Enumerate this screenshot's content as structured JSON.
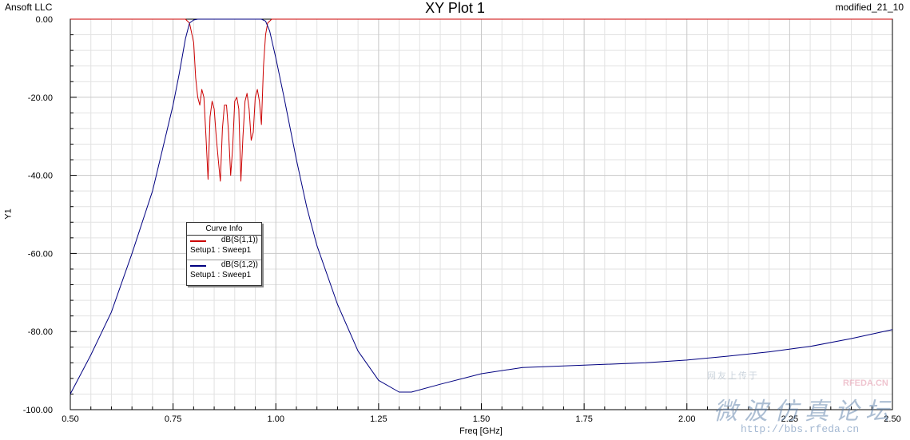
{
  "header": {
    "vendor": "Ansoft LLC",
    "title": "XY Plot 1",
    "design_name": "modified_21_10"
  },
  "chart_data": {
    "type": "line",
    "title": "XY Plot 1",
    "xlabel": "Freq [GHz]",
    "ylabel": "Y1",
    "xlim": [
      0.5,
      2.5
    ],
    "ylim": [
      -100,
      0
    ],
    "xticks": [
      "0.50",
      "0.75",
      "1.00",
      "1.25",
      "1.50",
      "1.75",
      "2.00",
      "2.25",
      "2.50"
    ],
    "yticks": [
      "0.00",
      "-20.00",
      "-40.00",
      "-60.00",
      "-80.00",
      "-100.00"
    ],
    "grid": true,
    "legend_placement": "inside-left",
    "legend_title": "Curve Info",
    "series": [
      {
        "name": "dB(S(1,1))",
        "setup": "Setup1 : Sweep1",
        "color": "#cc0000",
        "x": [
          0.5,
          0.78,
          0.79,
          0.8,
          0.805,
          0.81,
          0.815,
          0.82,
          0.825,
          0.83,
          0.835,
          0.84,
          0.845,
          0.85,
          0.855,
          0.86,
          0.865,
          0.87,
          0.875,
          0.88,
          0.885,
          0.89,
          0.895,
          0.9,
          0.905,
          0.91,
          0.915,
          0.92,
          0.925,
          0.93,
          0.935,
          0.94,
          0.945,
          0.95,
          0.955,
          0.96,
          0.965,
          0.97,
          0.975,
          0.98,
          0.99,
          1.0,
          2.5
        ],
        "y": [
          0,
          0,
          -1,
          -6,
          -15,
          -20,
          -22,
          -18,
          -20,
          -30,
          -41,
          -25,
          -21,
          -23,
          -30,
          -36,
          -41.5,
          -28,
          -22,
          -22,
          -29,
          -40,
          -33,
          -21,
          -20,
          -23,
          -41.5,
          -30,
          -21,
          -19,
          -23,
          -31,
          -29,
          -20,
          -18,
          -21,
          -27,
          -12,
          -4,
          -1,
          0,
          0,
          0
        ]
      },
      {
        "name": "dB(S(1,2))",
        "setup": "Setup1 : Sweep1",
        "color": "#000080",
        "x": [
          0.5,
          0.55,
          0.6,
          0.65,
          0.7,
          0.725,
          0.75,
          0.765,
          0.78,
          0.79,
          0.8,
          0.81,
          0.83,
          0.85,
          0.9,
          0.95,
          0.965,
          0.975,
          0.985,
          1.0,
          1.02,
          1.05,
          1.075,
          1.1,
          1.15,
          1.2,
          1.25,
          1.3,
          1.33,
          1.4,
          1.5,
          1.6,
          1.75,
          1.9,
          2.0,
          2.1,
          2.2,
          2.3,
          2.4,
          2.5
        ],
        "y": [
          -96,
          -86,
          -75,
          -60,
          -44,
          -33,
          -22,
          -14,
          -5,
          -1,
          -0.2,
          0,
          0,
          0,
          0,
          0,
          0,
          -0.5,
          -3,
          -10,
          -20,
          -36,
          -48,
          -58,
          -73,
          -85,
          -92.5,
          -95.5,
          -95.5,
          -93.5,
          -90.8,
          -89.2,
          -88.6,
          -88,
          -87.3,
          -86.3,
          -85.2,
          -83.8,
          -81.8,
          -79.5
        ]
      }
    ]
  },
  "legend": {
    "title": "Curve Info",
    "entries": [
      {
        "name": "dB(S(1,1))",
        "setup": "Setup1 : Sweep1",
        "color": "#cc0000"
      },
      {
        "name": "dB(S(1,2))",
        "setup": "Setup1 : Sweep1",
        "color": "#000080"
      }
    ]
  },
  "watermark": {
    "small_text": "网友上传于",
    "brand": "RFEDA.CN",
    "large_text": "微波仿真论坛",
    "url": "http://bbs.rfeda.cn"
  }
}
